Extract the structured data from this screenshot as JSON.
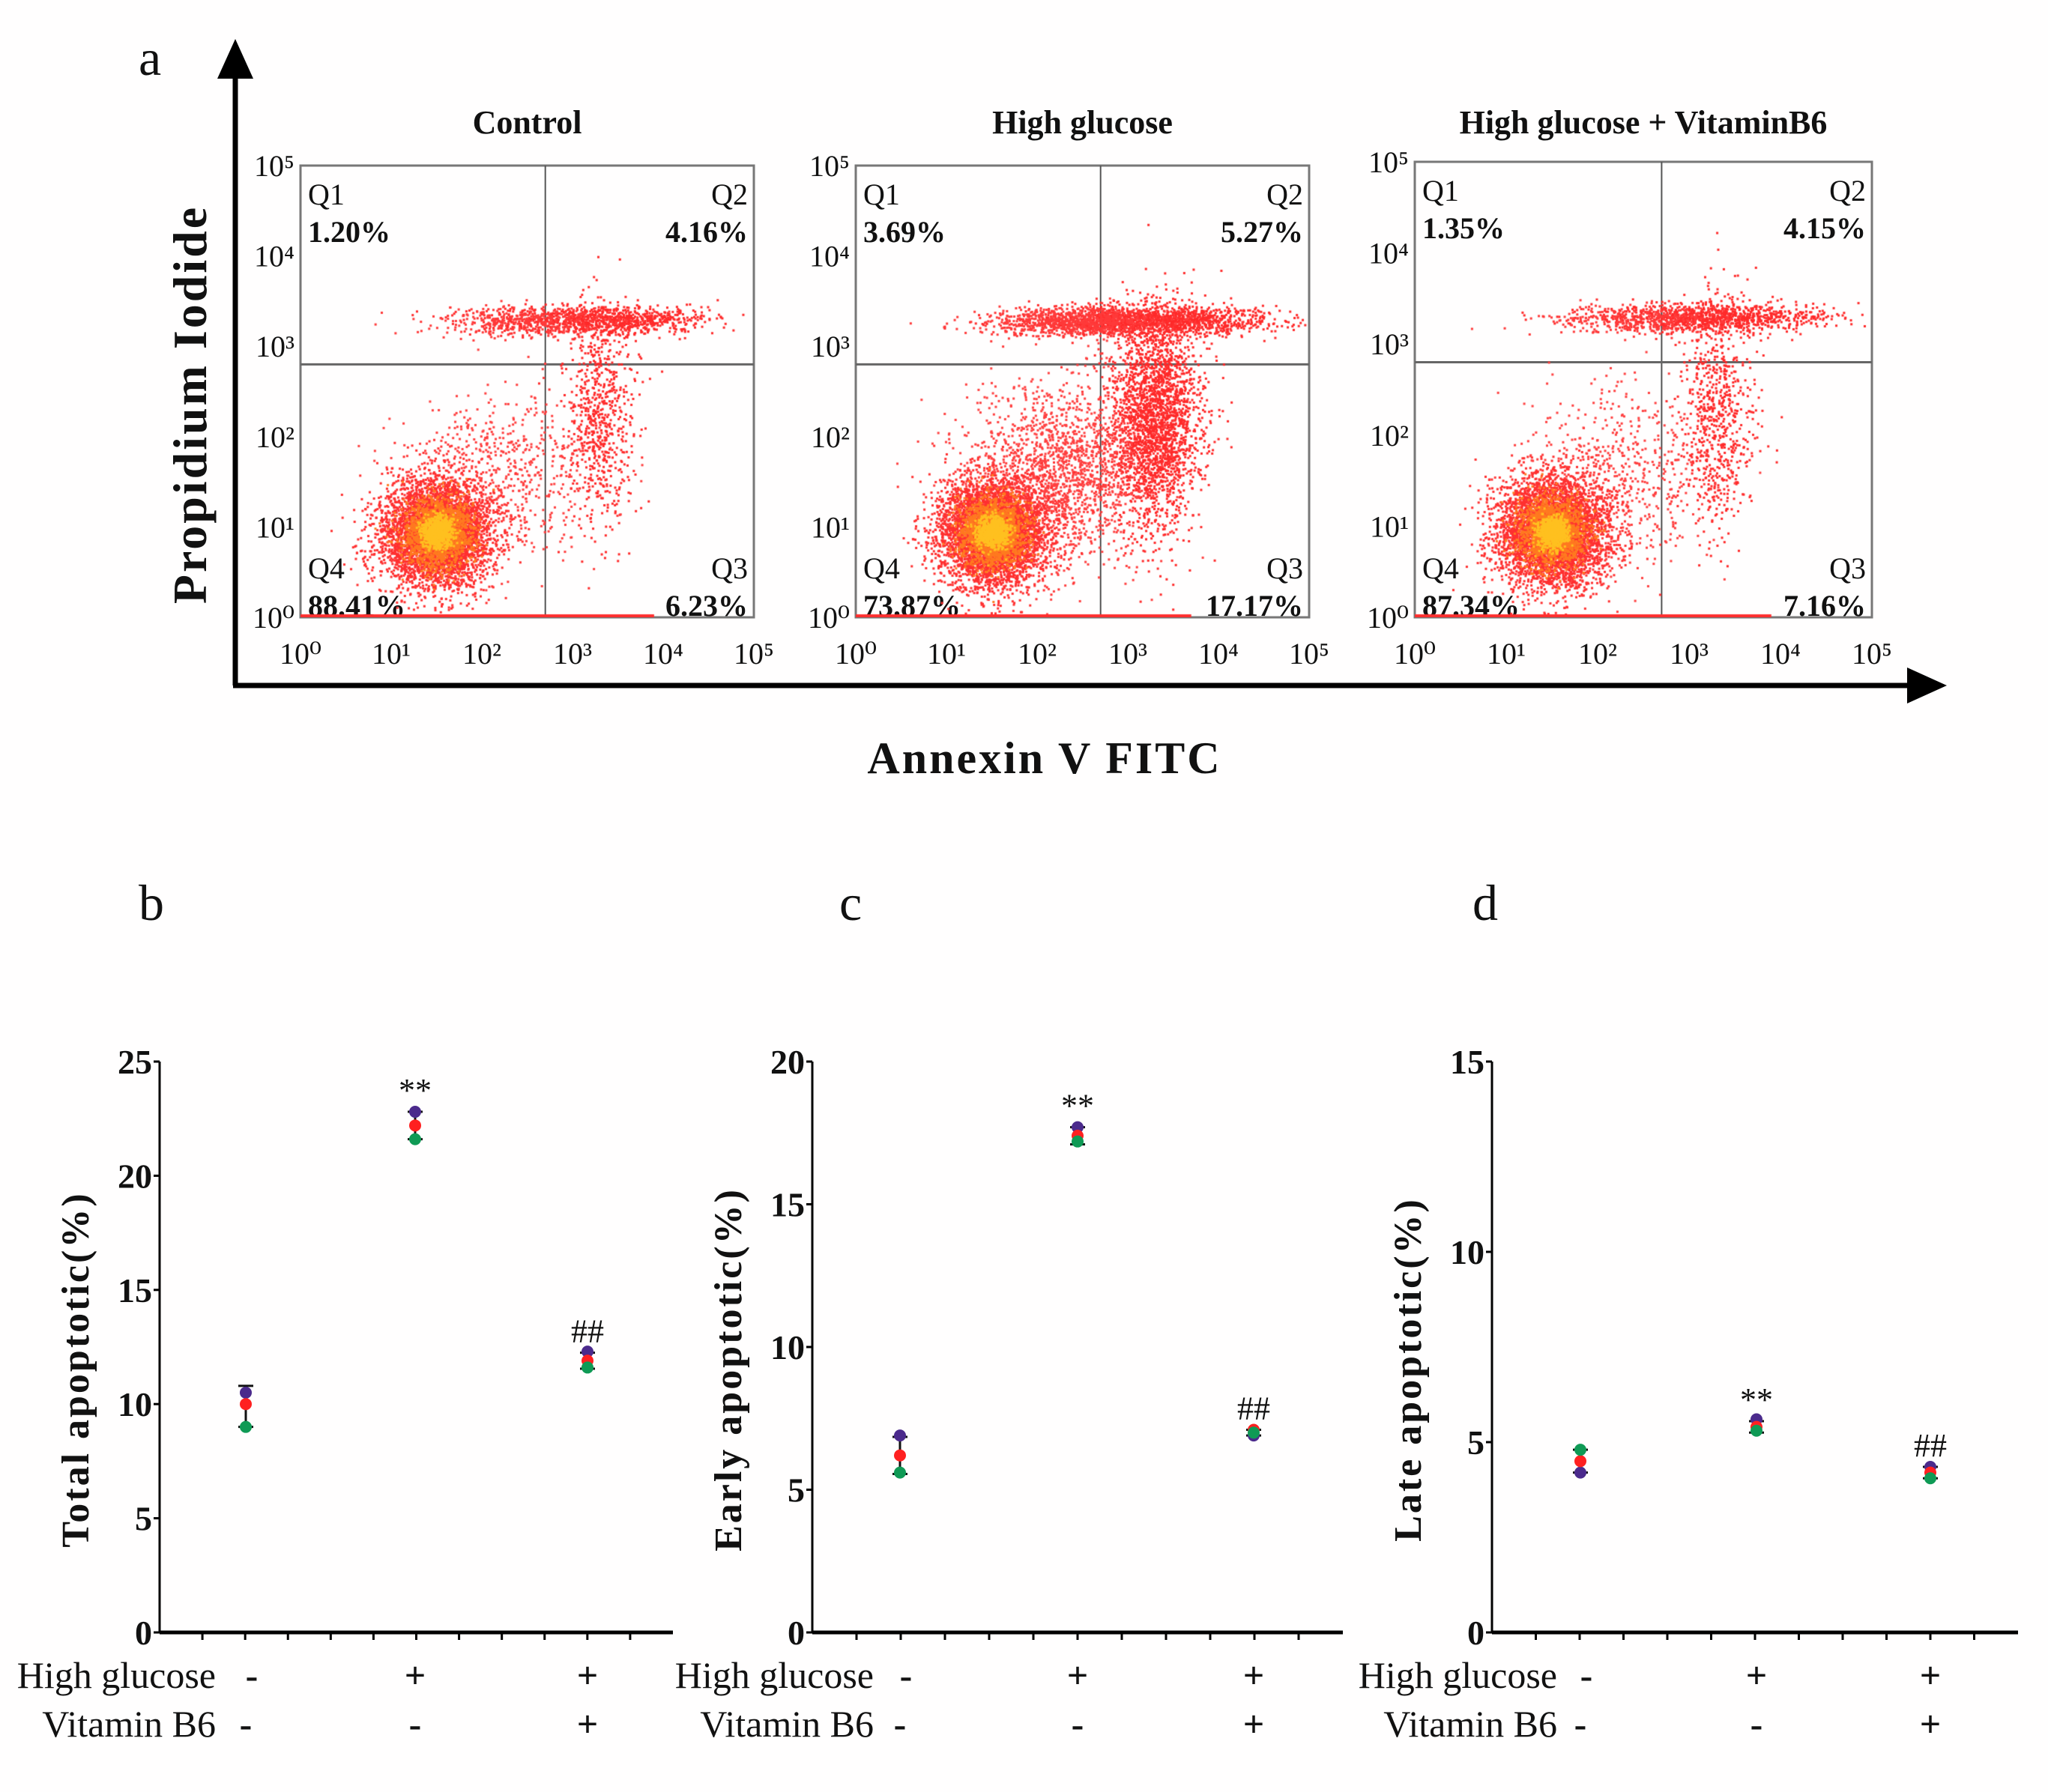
{
  "panel_labels": {
    "a": "a",
    "b": "b",
    "c": "c",
    "d": "d"
  },
  "flow": {
    "y_axis_label": "Propidium Iodide",
    "x_axis_label": "Annexin V FITC",
    "tick_labels": [
      "10⁰",
      "10¹",
      "10²",
      "10³",
      "10⁴",
      "10⁵"
    ],
    "plots": [
      {
        "title": "Control",
        "quadrants": [
          {
            "name": "Q1",
            "value": "1.20%"
          },
          {
            "name": "Q2",
            "value": "4.16%"
          },
          {
            "name": "Q3",
            "value": "6.23%"
          },
          {
            "name": "Q4",
            "value": "88.41%"
          }
        ]
      },
      {
        "title": "High glucose",
        "quadrants": [
          {
            "name": "Q1",
            "value": "3.69%"
          },
          {
            "name": "Q2",
            "value": "5.27%"
          },
          {
            "name": "Q3",
            "value": "17.17%"
          },
          {
            "name": "Q4",
            "value": "73.87%"
          }
        ]
      },
      {
        "title": "High glucose + VitaminB6",
        "quadrants": [
          {
            "name": "Q1",
            "value": "1.35%"
          },
          {
            "name": "Q2",
            "value": "4.15%"
          },
          {
            "name": "Q3",
            "value": "7.16%"
          },
          {
            "name": "Q4",
            "value": "87.34%"
          }
        ]
      }
    ]
  },
  "colors": {
    "purple": "#4b2a8c",
    "red": "#ff2020",
    "green": "#0f9a55",
    "dot": "#ff3030"
  },
  "chart_data": [
    {
      "type": "scatter",
      "panel": "b",
      "ylabel": "Total apoptotic(%)",
      "ylim": [
        0,
        25
      ],
      "yticks": [
        "0",
        "5",
        "10",
        "15",
        "20",
        "25"
      ],
      "row_labels": [
        "High glucose",
        "Vitamin B6"
      ],
      "groups": [
        {
          "high_glucose": "-",
          "vitamin_b6": "-",
          "points": [
            10.5,
            10.0,
            9.0
          ],
          "mean": 9.9,
          "err": 0.9,
          "sig": ""
        },
        {
          "high_glucose": "+",
          "vitamin_b6": "-",
          "points": [
            22.8,
            22.2,
            21.6
          ],
          "mean": 22.2,
          "err": 0.6,
          "sig": "**"
        },
        {
          "high_glucose": "+",
          "vitamin_b6": "+",
          "points": [
            12.3,
            11.9,
            11.6
          ],
          "mean": 11.9,
          "err": 0.35,
          "sig": "##"
        }
      ]
    },
    {
      "type": "scatter",
      "panel": "c",
      "ylabel": "Early apoptotic(%)",
      "ylim": [
        0,
        20
      ],
      "yticks": [
        "0",
        "5",
        "10",
        "15",
        "20"
      ],
      "row_labels": [
        "High glucose",
        "Vitamin B6"
      ],
      "groups": [
        {
          "high_glucose": "-",
          "vitamin_b6": "-",
          "points": [
            6.9,
            6.2,
            5.6
          ],
          "mean": 6.2,
          "err": 0.65,
          "sig": ""
        },
        {
          "high_glucose": "+",
          "vitamin_b6": "-",
          "points": [
            17.7,
            17.4,
            17.2
          ],
          "mean": 17.4,
          "err": 0.3,
          "sig": "**"
        },
        {
          "high_glucose": "+",
          "vitamin_b6": "+",
          "points": [
            6.9,
            7.1,
            7.0
          ],
          "mean": 7.0,
          "err": 0.1,
          "sig": "##"
        }
      ]
    },
    {
      "type": "scatter",
      "panel": "d",
      "ylabel": "Late apoptotic(%)",
      "ylim": [
        0,
        15
      ],
      "yticks": [
        "0",
        "5",
        "10",
        "15"
      ],
      "row_labels": [
        "High glucose",
        "Vitamin B6"
      ],
      "groups": [
        {
          "high_glucose": "-",
          "vitamin_b6": "-",
          "points": [
            4.2,
            4.5,
            4.8
          ],
          "mean": 4.5,
          "err": 0.3,
          "sig": ""
        },
        {
          "high_glucose": "+",
          "vitamin_b6": "-",
          "points": [
            5.6,
            5.4,
            5.3
          ],
          "mean": 5.4,
          "err": 0.15,
          "sig": "**"
        },
        {
          "high_glucose": "+",
          "vitamin_b6": "+",
          "points": [
            4.35,
            4.2,
            4.05
          ],
          "mean": 4.2,
          "err": 0.15,
          "sig": "##"
        }
      ]
    }
  ]
}
